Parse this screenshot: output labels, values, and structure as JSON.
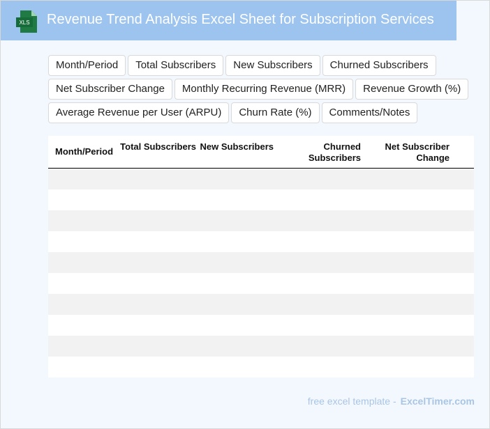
{
  "header": {
    "icon": "XLS",
    "title": "Revenue Trend Analysis Excel Sheet for Subscription Services"
  },
  "tags": [
    [
      "Month/Period",
      "Total Subscribers",
      "New Subscribers",
      "Churned Subscribers"
    ],
    [
      "Net Subscriber Change",
      "Monthly Recurring Revenue (MRR)",
      "Revenue Growth (%)"
    ],
    [
      "Average Revenue per User (ARPU)",
      "Churn Rate (%)",
      "Comments/Notes"
    ]
  ],
  "table": {
    "columns": [
      "Month/Period",
      "Total Subscribers",
      "New Subscribers",
      "Churned Subscribers",
      "Net Subscriber Change"
    ]
  },
  "footer": {
    "text": "free excel template -",
    "site": "ExcelTimer.com"
  }
}
